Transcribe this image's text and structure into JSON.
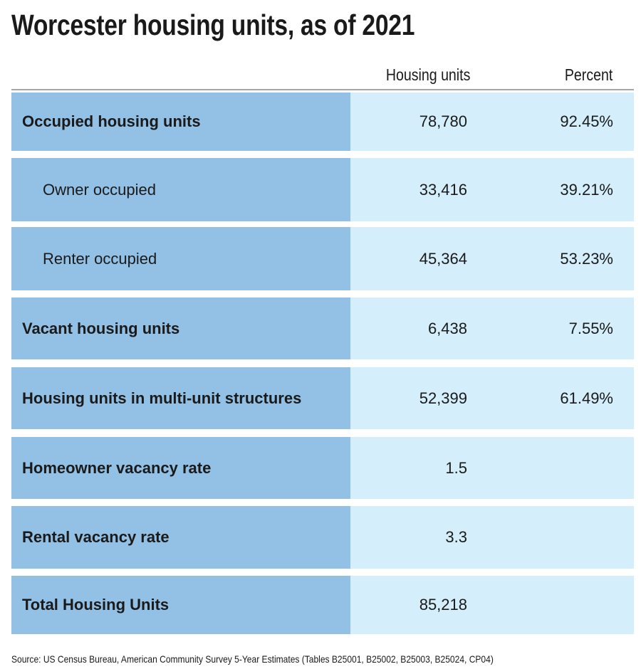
{
  "chart_data": {
    "type": "table",
    "title": "Worcester housing units, as of 2021",
    "columns": [
      "",
      "Housing units",
      "Percent"
    ],
    "rows": [
      {
        "label": "Occupied housing units",
        "units": "78,780",
        "percent": "92.45%",
        "bold": true
      },
      {
        "label": "Owner occupied",
        "units": "33,416",
        "percent": "39.21%",
        "bold": false
      },
      {
        "label": "Renter occupied",
        "units": "45,364",
        "percent": "53.23%",
        "bold": false
      },
      {
        "label": "Vacant housing units",
        "units": "6,438",
        "percent": "7.55%",
        "bold": true
      },
      {
        "label": "Housing units in multi-unit structures",
        "units": "52,399",
        "percent": "61.49%",
        "bold": true
      },
      {
        "label": "Homeowner vacancy rate",
        "units": "1.5",
        "percent": "",
        "bold": true
      },
      {
        "label": "Rental vacancy rate",
        "units": "3.3",
        "percent": "",
        "bold": true
      },
      {
        "label": "Total Housing Units",
        "units": "85,218",
        "percent": "",
        "bold": true
      }
    ],
    "source": "Source: US Census Bureau, American Community Survey 5-Year Estimates (Tables B25001, B25002, B25003, B25024, CP04)",
    "colors": {
      "label_cell": "#93c1e6",
      "value_cell": "#d4eefb",
      "rule": "#a6a6a6"
    }
  }
}
